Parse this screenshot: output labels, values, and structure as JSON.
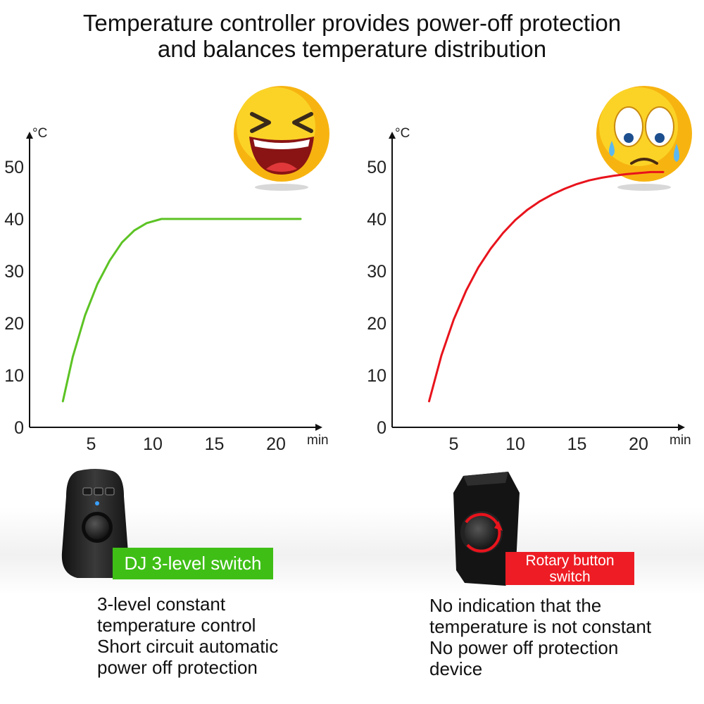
{
  "headline": {
    "line1": "Temperature controller provides power-off protection",
    "line2": "and balances temperature distribution"
  },
  "chart_data": [
    {
      "type": "line",
      "y_unit": "°C",
      "x_unit": "min",
      "y_ticks": [
        "50",
        "40",
        "30",
        "20",
        "10",
        "0"
      ],
      "x_ticks": [
        "5",
        "10",
        "15",
        "20"
      ],
      "xlim": [
        0,
        22
      ],
      "ylim": [
        0,
        55
      ],
      "grid": false,
      "series": [
        {
          "color": "#5cc324",
          "x": [
            2.7,
            3.5,
            4.5,
            5.5,
            6.5,
            7.5,
            8.5,
            9.5,
            10.7,
            12,
            14,
            16,
            18,
            20,
            22
          ],
          "y": [
            5,
            13.5,
            21.5,
            27.5,
            32,
            35.5,
            37.8,
            39.2,
            40,
            40,
            40,
            40,
            40,
            40,
            40
          ]
        }
      ],
      "emoji": "laughing-emoji"
    },
    {
      "type": "line",
      "y_unit": "°C",
      "x_unit": "min",
      "y_ticks": [
        "50",
        "40",
        "30",
        "20",
        "10",
        "0"
      ],
      "x_ticks": [
        "5",
        "10",
        "15",
        "20"
      ],
      "xlim": [
        0,
        22
      ],
      "ylim": [
        0,
        55
      ],
      "grid": false,
      "series": [
        {
          "color": "#e8131c",
          "x": [
            3,
            4,
            5,
            6,
            7,
            8,
            9,
            10,
            11,
            12,
            13,
            14,
            15,
            16,
            17,
            18,
            19,
            20,
            21,
            22
          ],
          "y": [
            5,
            13.8,
            20.7,
            26.2,
            30.7,
            34.3,
            37.3,
            39.8,
            41.8,
            43.4,
            44.7,
            45.8,
            46.7,
            47.4,
            47.9,
            48.3,
            48.6,
            48.8,
            49,
            49
          ]
        }
      ],
      "emoji": "crying-emoji"
    }
  ],
  "left_product": {
    "tag": "DJ 3-level switch",
    "tag_color": "#3fbf16",
    "desc": [
      "3-level constant",
      "temperature control",
      "Short circuit automatic",
      "power off protection"
    ]
  },
  "right_product": {
    "tag_line1": "Rotary button",
    "tag_line2": "switch",
    "tag_color": "#ee1c24",
    "desc": [
      "No indication that the",
      "temperature is not constant",
      "No power off protection",
      "device"
    ]
  }
}
